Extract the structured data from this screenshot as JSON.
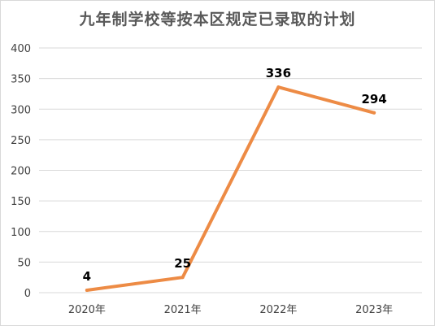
{
  "chart_data": {
    "type": "line",
    "title": "九年制学校等按本区规定已录取的计划",
    "xlabel": "",
    "ylabel": "",
    "categories": [
      "2020年",
      "2021年",
      "2022年",
      "2023年"
    ],
    "series": [
      {
        "values": [
          4,
          25,
          336,
          294
        ],
        "color": "#ED8B45"
      }
    ],
    "data_labels": [
      "4",
      "25",
      "336",
      "294"
    ],
    "ylim": [
      0,
      400
    ],
    "yticks": [
      0,
      50,
      100,
      150,
      200,
      250,
      300,
      350,
      400
    ],
    "ytick_labels": [
      "0",
      "50",
      "100",
      "150",
      "200",
      "250",
      "300",
      "350",
      "400"
    ],
    "grid": true,
    "legend": "none"
  }
}
